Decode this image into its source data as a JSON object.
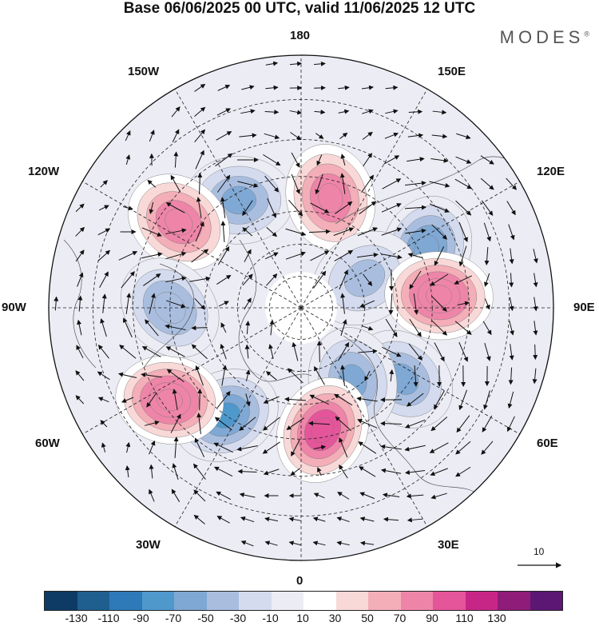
{
  "title": "Base 06/06/2025 00 UTC, valid 11/06/2025 12 UTC",
  "brand": "MODES",
  "brand_mark": "®",
  "longitude_labels": {
    "top": "180",
    "bottom": "0",
    "left": "90W",
    "right": "90E",
    "upper_left_1": "150W",
    "upper_left_2": "120W",
    "upper_right_1": "150E",
    "upper_right_2": "120E",
    "lower_left_1": "60W",
    "lower_left_2": "30W",
    "lower_right_1": "60E",
    "lower_right_2": "30E"
  },
  "reference_vector_label": "10",
  "colorbar": {
    "colors": [
      "#0d3b66",
      "#1f5f8f",
      "#2e7ab8",
      "#4e98cc",
      "#7fa8d4",
      "#a9bedf",
      "#d4dbee",
      "#ececf5",
      "#ffffff",
      "#f9d8d8",
      "#f3aeb8",
      "#ee85a8",
      "#e45599",
      "#c72687",
      "#8f1c78",
      "#5c1774"
    ],
    "tick_labels": [
      "-130",
      "-110",
      "-90",
      "-70",
      "-50",
      "-30",
      "-10",
      "10",
      "30",
      "50",
      "70",
      "90",
      "110",
      "130"
    ]
  },
  "anomaly_centers": [
    {
      "lon": "150W",
      "lat": 52,
      "value": -60,
      "type": "negative"
    },
    {
      "lon": "125W",
      "lat": 45,
      "value": 80,
      "type": "positive"
    },
    {
      "lon": "165E",
      "lat": 55,
      "value": 80,
      "type": "positive"
    },
    {
      "lon": "115E",
      "lat": 48,
      "value": -70,
      "type": "negative"
    },
    {
      "lon": "115E",
      "lat": 68,
      "value": -40,
      "type": "negative"
    },
    {
      "lon": "95E",
      "lat": 48,
      "value": 85,
      "type": "positive"
    },
    {
      "lon": "55E",
      "lat": 52,
      "value": -60,
      "type": "negative"
    },
    {
      "lon": "35E",
      "lat": 62,
      "value": -60,
      "type": "negative"
    },
    {
      "lon": "10E",
      "lat": 52,
      "value": 90,
      "type": "positive"
    },
    {
      "lon": "35W",
      "lat": 50,
      "value": -80,
      "type": "negative"
    },
    {
      "lon": "55W",
      "lat": 42,
      "value": 85,
      "type": "positive"
    },
    {
      "lon": "90W",
      "lat": 50,
      "value": -50,
      "type": "negative"
    }
  ]
}
